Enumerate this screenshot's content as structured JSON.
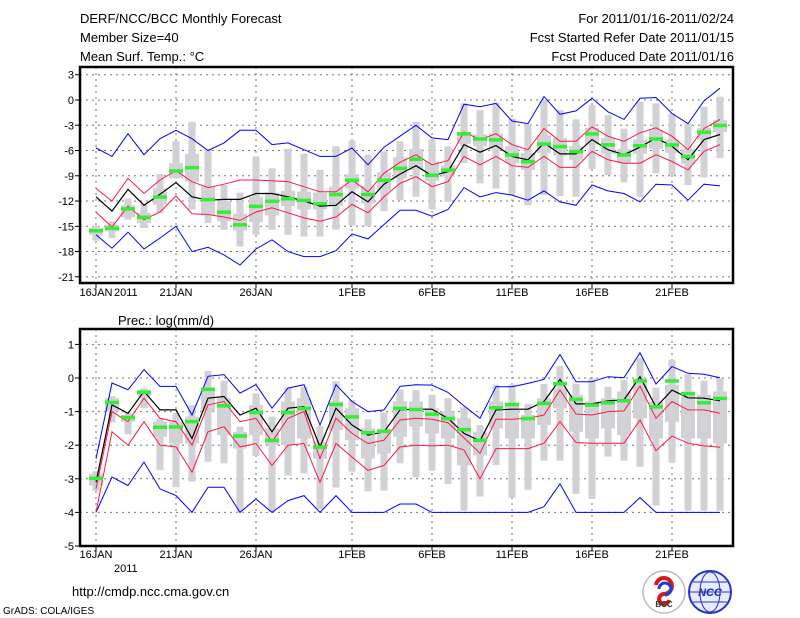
{
  "header": {
    "title": "DERF/NCC/BCC Monthly Forecast",
    "member_size": "Member Size=40",
    "variable_top": "Mean Surf. Temp.: °C",
    "for_range": "For 2011/01/16-2011/02/24",
    "refer_date": "Fcst Started Refer Date 2011/01/15",
    "produced_date": "Fcst Produced Date 2011/01/16"
  },
  "footer": {
    "url": "http://cmdp.ncc.cma.gov.cn",
    "credit": "GrADS: COLA/IGES",
    "logo_bcc": "BCC",
    "logo_ncc": "NCC"
  },
  "colors": {
    "extreme": "#0000ff",
    "spread": "#ff1744",
    "mean": "#000000",
    "median": "#33ee33",
    "box": "#d2d2d6",
    "grid": "#777777"
  },
  "chart_data": [
    {
      "type": "line",
      "name": "temperature",
      "ylabel": "Mean Surf. Temp.: °C",
      "ylim": [
        -21.7,
        3.9
      ],
      "yticks": [
        3,
        0,
        -3,
        -6,
        -9,
        -12,
        -15,
        -18,
        -21
      ],
      "ytick_labels": [
        "3",
        "0",
        "-3",
        "-6",
        "-9",
        "-12",
        "-15",
        "-18",
        "-21"
      ],
      "x_start": "2011-01-16",
      "n_days": 40,
      "xtick_days": [
        0,
        5,
        10,
        16,
        21,
        26,
        31,
        36
      ],
      "xtick_labels": [
        "16JAN",
        "21JAN",
        "26JAN",
        "1FEB",
        "6FEB",
        "11FEB",
        "16FEB",
        "21FEB"
      ],
      "year_label": "2011",
      "grid": true,
      "series": {
        "max": [
          -5.7,
          -6.7,
          -4.0,
          -6.5,
          -4.6,
          -3.6,
          -4.6,
          -6.0,
          -5.1,
          -3.6,
          -3.6,
          -5.3,
          -5.1,
          -5.9,
          -6.7,
          -6.7,
          -5.7,
          -7.7,
          -5.6,
          -4.3,
          -3.0,
          -4.5,
          -4.7,
          -0.5,
          -0.8,
          -0.4,
          -2.5,
          -2.8,
          0.4,
          -1.7,
          -1.3,
          0.2,
          -1.4,
          -2.3,
          0.2,
          0.3,
          -1.6,
          -2.8,
          -0.1,
          1.4
        ],
        "upper": [
          -10.5,
          -12.0,
          -9.3,
          -11.1,
          -9.5,
          -8.4,
          -9.7,
          -10.4,
          -10.0,
          -9.5,
          -9.5,
          -9.6,
          -9.7,
          -10.3,
          -10.9,
          -10.9,
          -9.5,
          -10.9,
          -8.7,
          -7.4,
          -6.5,
          -7.7,
          -7.2,
          -3.8,
          -4.7,
          -4.0,
          -5.3,
          -5.9,
          -3.4,
          -4.9,
          -4.9,
          -3.2,
          -4.3,
          -4.9,
          -3.9,
          -3.3,
          -4.3,
          -5.9,
          -3.4,
          -2.3
        ],
        "mean": [
          -11.5,
          -13.2,
          -10.6,
          -12.5,
          -11.2,
          -9.8,
          -11.5,
          -11.9,
          -11.8,
          -11.8,
          -11.1,
          -11.1,
          -11.5,
          -12.0,
          -12.6,
          -12.5,
          -10.9,
          -12.1,
          -10.0,
          -8.8,
          -7.8,
          -9.0,
          -8.5,
          -5.3,
          -6.2,
          -5.4,
          -6.7,
          -7.1,
          -5.1,
          -6.4,
          -6.4,
          -4.7,
          -5.9,
          -6.5,
          -5.6,
          -4.5,
          -5.5,
          -7.1,
          -4.7,
          -4.1
        ],
        "lower": [
          -13.3,
          -15.1,
          -12.6,
          -14.2,
          -13.3,
          -11.4,
          -13.5,
          -13.6,
          -13.9,
          -14.3,
          -13.3,
          -12.8,
          -13.4,
          -14.0,
          -14.4,
          -13.9,
          -12.4,
          -13.4,
          -11.5,
          -9.9,
          -9.1,
          -10.3,
          -9.7,
          -6.7,
          -7.7,
          -6.7,
          -7.8,
          -8.0,
          -6.7,
          -8.0,
          -8.0,
          -6.1,
          -7.1,
          -7.5,
          -7.5,
          -6.5,
          -7.3,
          -8.3,
          -6.1,
          -5.3
        ],
        "min": [
          -16.0,
          -17.6,
          -15.7,
          -17.7,
          -16.4,
          -15.0,
          -18.0,
          -17.5,
          -18.4,
          -19.6,
          -17.7,
          -16.6,
          -18.0,
          -18.6,
          -18.6,
          -17.9,
          -15.9,
          -16.5,
          -14.8,
          -13.1,
          -13.1,
          -13.8,
          -13.0,
          -10.4,
          -11.5,
          -11.0,
          -11.3,
          -11.9,
          -10.8,
          -12.1,
          -12.5,
          -10.1,
          -10.8,
          -11.1,
          -12.1,
          -10.0,
          -10.1,
          -11.9,
          -10.0,
          -10.2
        ],
        "median": [
          -15.5,
          -15.2,
          -12.9,
          -13.9,
          -11.5,
          -8.4,
          -8.0,
          -11.8,
          -13.3,
          -14.8,
          -12.6,
          -12.0,
          -11.7,
          -11.9,
          -12.3,
          -11.2,
          -9.5,
          -11.2,
          -9.5,
          -8.1,
          -7.0,
          -8.9,
          -8.3,
          -4.0,
          -4.6,
          -4.7,
          -6.5,
          -7.3,
          -5.2,
          -5.5,
          -6.1,
          -4.0,
          -5.3,
          -6.5,
          -5.4,
          -4.6,
          -5.3,
          -6.7,
          -3.8,
          -3.0
        ],
        "whisker_hi": [
          -14.9,
          -14.4,
          -11.7,
          -12.4,
          -8.8,
          -4.9,
          -2.6,
          -5.9,
          -10.1,
          -11.0,
          -6.7,
          -8.1,
          -5.8,
          -6.4,
          -8.3,
          -5.5,
          -4.8,
          -6.5,
          -6.1,
          -4.9,
          -2.6,
          -4.7,
          -5.5,
          -0.4,
          -1.2,
          -0.3,
          -2.2,
          -2.8,
          0.0,
          -1.2,
          -2.3,
          -0.6,
          -1.8,
          -3.4,
          -0.2,
          -0.4,
          -1.6,
          -2.8,
          -0.8,
          0.4
        ],
        "whisker_lo": [
          -16.7,
          -16.4,
          -14.2,
          -15.2,
          -13.4,
          -9.3,
          -13.0,
          -14.6,
          -15.4,
          -17.4,
          -16.0,
          -15.4,
          -16.0,
          -16.2,
          -16.2,
          -15.4,
          -14.9,
          -15.0,
          -13.2,
          -11.9,
          -11.5,
          -13.0,
          -12.1,
          -7.5,
          -9.9,
          -10.5,
          -11.3,
          -12.5,
          -11.3,
          -11.4,
          -11.5,
          -8.2,
          -8.9,
          -9.8,
          -11.5,
          -8.7,
          -8.9,
          -10.1,
          -9.2,
          -6.9
        ],
        "box_hi": [
          -15.2,
          -14.8,
          -12.5,
          -13.4,
          -10.5,
          -7.5,
          -6.4,
          -10.3,
          -12.0,
          -13.5,
          -11.5,
          -11.0,
          -10.8,
          -10.9,
          -11.0,
          -10.3,
          -8.8,
          -10.2,
          -8.6,
          -6.8,
          -5.8,
          -7.3,
          -7.8,
          -3.8,
          -4.1,
          -4.0,
          -5.5,
          -6.3,
          -4.2,
          -4.5,
          -5.5,
          -3.3,
          -4.5,
          -5.8,
          -4.7,
          -3.6,
          -4.7,
          -5.8,
          -3.3,
          -2.4
        ],
        "box_lo": [
          -16.0,
          -15.6,
          -13.9,
          -14.6,
          -12.4,
          -9.3,
          -9.7,
          -13.7,
          -14.4,
          -15.5,
          -14.5,
          -13.7,
          -12.6,
          -13.0,
          -13.0,
          -12.6,
          -10.5,
          -12.3,
          -10.7,
          -9.3,
          -8.3,
          -9.6,
          -9.1,
          -5.2,
          -5.5,
          -5.9,
          -7.5,
          -8.3,
          -6.3,
          -6.6,
          -7.1,
          -5.3,
          -6.4,
          -7.5,
          -6.4,
          -5.8,
          -6.3,
          -7.6,
          -4.7,
          -3.8
        ]
      }
    },
    {
      "type": "line",
      "name": "precipitation",
      "ylabel": "Prec.: log(mm/d)",
      "ylim": [
        -5,
        1.46
      ],
      "yticks": [
        1,
        0,
        -1,
        -2,
        -3,
        -4,
        -5
      ],
      "ytick_labels": [
        "1",
        "0",
        "-1",
        "-2",
        "-3",
        "-4",
        "-5"
      ],
      "x_start": "2011-01-16",
      "n_days": 40,
      "xtick_days": [
        0,
        5,
        10,
        16,
        21,
        26,
        31,
        36
      ],
      "xtick_labels": [
        "16JAN",
        "21JAN",
        "26JAN",
        "1FEB",
        "6FEB",
        "11FEB",
        "16FEB",
        "21FEB"
      ],
      "year_label": "2011",
      "grid": true,
      "series": {
        "max": [
          -2.4,
          -0.15,
          -0.35,
          0.25,
          -0.25,
          -0.25,
          -1.1,
          0.05,
          0.1,
          -0.45,
          -0.2,
          -0.9,
          -0.3,
          -0.2,
          -1.4,
          -0.2,
          -0.7,
          -1.0,
          -0.95,
          -0.25,
          -0.2,
          -0.21,
          -0.43,
          -0.83,
          -1.2,
          -0.26,
          -0.26,
          -0.16,
          -0.04,
          0.7,
          -0.11,
          -0.11,
          0.04,
          0.01,
          0.75,
          -0.18,
          0.34,
          0.14,
          0.11,
          0.01
        ],
        "upper": [
          -3.3,
          -1.0,
          -1.3,
          -0.6,
          -1.2,
          -1.3,
          -2.0,
          -0.8,
          -0.7,
          -1.3,
          -1.2,
          -1.9,
          -1.2,
          -1.0,
          -2.4,
          -1.2,
          -1.65,
          -1.95,
          -1.85,
          -1.25,
          -1.2,
          -1.23,
          -1.33,
          -1.78,
          -2.24,
          -1.23,
          -1.23,
          -1.2,
          -1.1,
          -0.36,
          -1.07,
          -1.1,
          -1.0,
          -0.98,
          -0.24,
          -1.2,
          -0.7,
          -0.95,
          -0.95,
          -1.05
        ],
        "mean": [
          -3.1,
          -0.8,
          -1.05,
          -0.4,
          -0.95,
          -0.95,
          -1.8,
          -0.6,
          -0.55,
          -1.1,
          -0.9,
          -1.6,
          -0.9,
          -0.85,
          -2.05,
          -0.9,
          -1.4,
          -1.7,
          -1.6,
          -0.95,
          -0.93,
          -0.93,
          -1.2,
          -1.65,
          -1.87,
          -0.95,
          -0.93,
          -0.93,
          -0.7,
          -0.04,
          -0.77,
          -0.77,
          -0.68,
          -0.65,
          0.04,
          -0.87,
          -0.36,
          -0.59,
          -0.6,
          -0.68
        ],
        "lower": [
          -4.0,
          -1.6,
          -2.0,
          -1.3,
          -2.0,
          -2.05,
          -2.8,
          -1.6,
          -1.45,
          -2.05,
          -1.95,
          -2.6,
          -2.0,
          -1.95,
          -3.1,
          -1.95,
          -2.35,
          -2.75,
          -2.6,
          -2.05,
          -2.0,
          -2.02,
          -2.0,
          -2.14,
          -3.0,
          -2.1,
          -2.1,
          -2.1,
          -1.94,
          -1.3,
          -1.92,
          -1.94,
          -1.94,
          -1.94,
          -1.25,
          -2.16,
          -1.73,
          -1.94,
          -2.02,
          -2.06
        ],
        "min": [
          -4.0,
          -2.95,
          -3.2,
          -2.5,
          -3.3,
          -3.5,
          -4.0,
          -3.25,
          -3.25,
          -4.0,
          -3.6,
          -4.0,
          -3.65,
          -3.5,
          -4.0,
          -3.5,
          -4.0,
          -4.0,
          -4.0,
          -3.75,
          -3.75,
          -4.0,
          -4.0,
          -4.0,
          -4.0,
          -4.0,
          -4.0,
          -4.0,
          -3.83,
          -3.15,
          -4.0,
          -4.0,
          -4.0,
          -4.0,
          -3.56,
          -4.0,
          -4.0,
          -4.0,
          -4.0,
          -4.0
        ],
        "median": [
          -2.98,
          -0.72,
          -1.17,
          -0.42,
          -1.46,
          -1.45,
          -1.29,
          -0.33,
          -0.82,
          -1.72,
          -1.02,
          -1.85,
          -1.02,
          -0.9,
          -2.05,
          -0.78,
          -1.15,
          -1.62,
          -1.58,
          -0.9,
          -0.93,
          -1.07,
          -1.2,
          -1.53,
          -1.85,
          -0.88,
          -0.78,
          -1.2,
          -0.75,
          -0.16,
          -0.63,
          -0.8,
          -0.73,
          -0.67,
          -0.08,
          -0.85,
          -0.08,
          -0.46,
          -0.73,
          -0.6
        ],
        "whisker_hi": [
          -2.77,
          -0.54,
          -1.03,
          -0.31,
          -1.2,
          -1.05,
          -0.8,
          0.21,
          -0.08,
          -1.45,
          -0.46,
          -1.15,
          -0.28,
          -0.26,
          -1.43,
          -0.1,
          -0.65,
          -1.23,
          -1.03,
          -0.34,
          -0.36,
          -0.5,
          -0.6,
          -0.87,
          -1.4,
          -0.2,
          -0.2,
          -0.77,
          -0.18,
          0.36,
          -0.18,
          -0.01,
          -0.26,
          -0.06,
          0.59,
          -0.29,
          0.54,
          0.11,
          -0.08,
          -0.01
        ],
        "whisker_lo": [
          -3.36,
          -1.32,
          -1.68,
          -0.9,
          -2.74,
          -3.25,
          -3.08,
          -2.49,
          -2.54,
          -4.0,
          -2.32,
          -3.98,
          -2.9,
          -2.84,
          -3.9,
          -3.26,
          -2.79,
          -3.38,
          -3.35,
          -2.54,
          -2.96,
          -2.76,
          -3.15,
          -3.95,
          -3.53,
          -2.59,
          -3.56,
          -3.33,
          -2.46,
          -2.46,
          -3.45,
          -3.6,
          -2.34,
          -2.46,
          -2.64,
          -3.8,
          -2.52,
          -3.95,
          -3.95,
          -3.95
        ],
        "box_hi": [
          -2.85,
          -0.6,
          -1.1,
          -0.35,
          -1.3,
          -1.3,
          -1.15,
          -0.3,
          -0.6,
          -1.6,
          -0.8,
          -1.5,
          -0.7,
          -0.6,
          -1.9,
          -0.7,
          -0.9,
          -1.5,
          -1.5,
          -0.7,
          -0.7,
          -0.9,
          -1.0,
          -1.2,
          -1.6,
          -0.7,
          -0.8,
          -1.1,
          -0.6,
          -0.3,
          -0.5,
          -0.7,
          -0.6,
          -0.4,
          -0.1,
          -0.7,
          -0.2,
          -0.4,
          -0.5,
          -0.4
        ],
        "box_lo": [
          -3.2,
          -1.0,
          -1.3,
          -0.55,
          -1.75,
          -1.95,
          -1.95,
          -1.0,
          -1.7,
          -2.1,
          -1.7,
          -2.0,
          -2.0,
          -1.8,
          -2.4,
          -1.55,
          -1.85,
          -2.4,
          -2.25,
          -1.75,
          -1.45,
          -1.65,
          -1.8,
          -2.6,
          -2.3,
          -1.5,
          -1.8,
          -1.8,
          -1.4,
          -0.9,
          -1.6,
          -1.8,
          -1.5,
          -1.7,
          -1.2,
          -1.8,
          -1.3,
          -1.8,
          -1.8,
          -1.95
        ]
      }
    }
  ]
}
